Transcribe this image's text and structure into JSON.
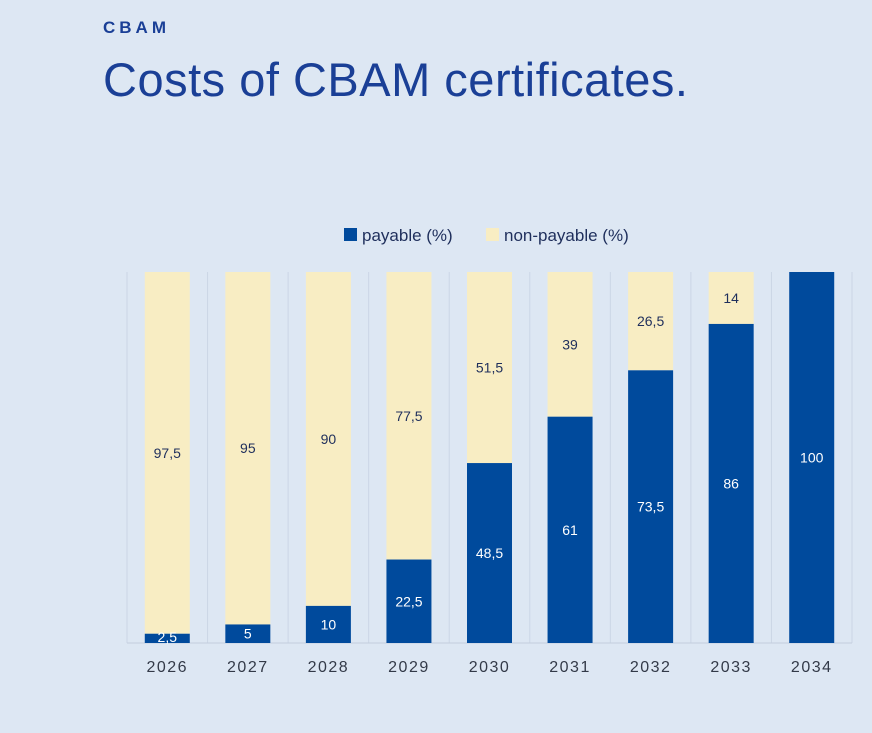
{
  "header": {
    "kicker": "CBAM",
    "title": "Costs of CBAM certificates."
  },
  "colors": {
    "payable": "#004a9c",
    "non_payable": "#f8edc3",
    "background": "#dde7f3",
    "title": "#1a3f96"
  },
  "chart_data": {
    "type": "bar",
    "stacked": true,
    "title": "",
    "xlabel": "",
    "ylabel": "",
    "ylim": [
      0,
      100
    ],
    "categories": [
      "2026",
      "2027",
      "2028",
      "2029",
      "2030",
      "2031",
      "2032",
      "2033",
      "2034"
    ],
    "series": [
      {
        "name": "payable (%)",
        "values": [
          2.5,
          5,
          10,
          22.5,
          48.5,
          61,
          73.5,
          86,
          100
        ],
        "labels": [
          "2,5",
          "5",
          "10",
          "22,5",
          "48,5",
          "61",
          "73,5",
          "86",
          "100"
        ]
      },
      {
        "name": "non-payable (%)",
        "values": [
          97.5,
          95,
          90,
          77.5,
          51.5,
          39,
          26.5,
          14,
          0
        ],
        "labels": [
          "97,5",
          "95",
          "90",
          "77,5",
          "51,5",
          "39",
          "26,5",
          "14",
          ""
        ]
      }
    ],
    "legend": [
      "payable (%)",
      "non-payable (%)"
    ],
    "legend_position": "top-center",
    "grid": true
  }
}
